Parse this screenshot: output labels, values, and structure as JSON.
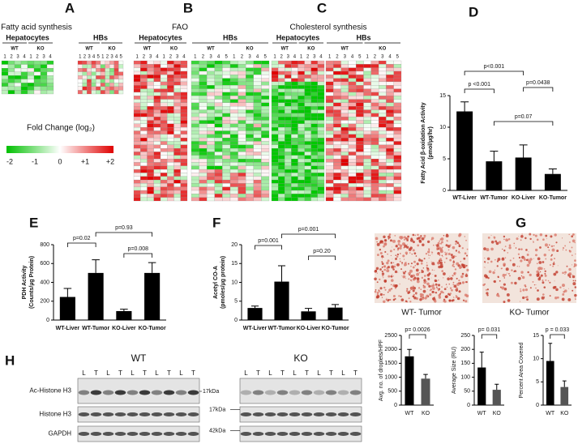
{
  "figure": {
    "heatmaps": [
      {
        "letter": "A",
        "title": "Fatty acid synthesis",
        "groups": [
          {
            "name": "Hepatocytes",
            "subgroups": [
              {
                "name": "WT",
                "columns": [
                  "1",
                  "2",
                  "3",
                  "4"
                ]
              },
              {
                "name": "KO",
                "columns": [
                  "1",
                  "2",
                  "3",
                  "4"
                ]
              }
            ]
          },
          {
            "name": "HBs",
            "subgroups": [
              {
                "name": "WT",
                "columns": [
                  "1",
                  "2",
                  "3",
                  "4",
                  "5"
                ]
              },
              {
                "name": "KO",
                "columns": [
                  "1",
                  "2",
                  "3",
                  "4",
                  "5"
                ]
              }
            ]
          }
        ]
      },
      {
        "letter": "B",
        "title": "FAO",
        "groups": [
          {
            "name": "Hepatocytes",
            "subgroups": [
              {
                "name": "WT",
                "columns": [
                  "1",
                  "2",
                  "3",
                  "4"
                ]
              },
              {
                "name": "KO",
                "columns": [
                  "1",
                  "2",
                  "3",
                  "4"
                ]
              }
            ]
          },
          {
            "name": "HBs",
            "subgroups": [
              {
                "name": "WT",
                "columns": [
                  "1",
                  "2",
                  "3",
                  "4",
                  "5"
                ]
              },
              {
                "name": "KO",
                "columns": [
                  "1",
                  "2",
                  "3",
                  "4",
                  "5"
                ]
              }
            ]
          }
        ]
      },
      {
        "letter": "C",
        "title": "Cholesterol synthesis",
        "groups": [
          {
            "name": "Hepatocytes",
            "subgroups": [
              {
                "name": "WT",
                "columns": [
                  "1",
                  "2",
                  "3",
                  "4"
                ]
              },
              {
                "name": "KO",
                "columns": [
                  "1",
                  "2",
                  "3",
                  "4"
                ]
              }
            ]
          },
          {
            "name": "HBs",
            "subgroups": [
              {
                "name": "WT",
                "columns": [
                  "1",
                  "2",
                  "3",
                  "4",
                  "5"
                ]
              },
              {
                "name": "KO",
                "columns": [
                  "1",
                  "2",
                  "3",
                  "4",
                  "5"
                ]
              }
            ]
          }
        ]
      }
    ],
    "legend": {
      "title": "Fold Change (log₂)",
      "ticks": [
        "-2",
        "-1",
        "0",
        "+1",
        "+2"
      ]
    },
    "images": {
      "letter": "G",
      "captions": [
        "WT- Tumor",
        "KO- Tumor"
      ]
    },
    "blot": {
      "letter": "H",
      "groups": [
        {
          "name": "WT",
          "lanes": [
            "L",
            "T",
            "L",
            "T",
            "L",
            "T",
            "L",
            "T",
            "L",
            "T"
          ]
        },
        {
          "name": "KO",
          "lanes": [
            "L",
            "T",
            "L",
            "T",
            "L",
            "T",
            "L",
            "T",
            "L",
            "T"
          ]
        }
      ],
      "rows": [
        "Ac-Histone H3",
        "Histone H3",
        "GAPDH"
      ],
      "markers": [
        "17kDa",
        "17kDa",
        "42kDa"
      ]
    }
  },
  "chart_data": [
    {
      "type": "bar",
      "letter": "D",
      "ylabel": [
        "Fatty Acid β-oxidation Activity",
        "(pmol/µg/hr)"
      ],
      "categories": [
        "WT-Liver",
        "WT-Tumor",
        "KO-Liver",
        "KO-Tumor"
      ],
      "values": [
        12.5,
        4.6,
        5.2,
        2.6
      ],
      "errors": [
        1.5,
        1.6,
        2.0,
        0.8
      ],
      "color": "#000000",
      "ylim": [
        0,
        15
      ],
      "yticks": [
        0,
        5,
        10,
        15
      ],
      "annotations": [
        {
          "text": "p<0.001",
          "pair": [
            0,
            2
          ]
        },
        {
          "text": "p <0.001",
          "pair": [
            0,
            1
          ]
        },
        {
          "text": "p=0.0438",
          "pair": [
            2,
            3
          ]
        },
        {
          "text": "p=0.07",
          "pair": [
            1,
            3
          ]
        }
      ]
    },
    {
      "type": "bar",
      "letter": "E",
      "ylabel": [
        "PDH Activity",
        "(Counts/µg Protein)"
      ],
      "categories": [
        "WT-Liver",
        "WT-Tumor",
        "KO-Liver",
        "KO-Tumor"
      ],
      "values": [
        245,
        500,
        95,
        500
      ],
      "errors": [
        90,
        140,
        20,
        110
      ],
      "color": "#000000",
      "ylim": [
        0,
        800
      ],
      "yticks": [
        0,
        200,
        400,
        600,
        800
      ],
      "annotations": [
        {
          "text": "p=0.02",
          "pair": [
            0,
            1
          ]
        },
        {
          "text": "p=0.93",
          "pair": [
            1,
            3
          ]
        },
        {
          "text": "p=0.008",
          "pair": [
            2,
            3
          ]
        }
      ]
    },
    {
      "type": "bar",
      "letter": "F",
      "ylabel": [
        "Acetyl CO-A",
        "(pmoles/µg protein)"
      ],
      "categories": [
        "WT-Liver",
        "WT-Tumor",
        "KO-Liver",
        "KO-Tumor"
      ],
      "values": [
        3.2,
        10.2,
        2.3,
        3.3
      ],
      "errors": [
        0.5,
        4.2,
        0.8,
        0.8
      ],
      "color": "#000000",
      "ylim": [
        0,
        20
      ],
      "yticks": [
        0,
        5,
        10,
        15,
        20
      ],
      "annotations": [
        {
          "text": "p=0.001",
          "pair": [
            0,
            1
          ]
        },
        {
          "text": "p=0.001",
          "pair": [
            1,
            3
          ]
        },
        {
          "text": "p=0.20",
          "pair": [
            2,
            3
          ]
        }
      ]
    },
    {
      "type": "bar",
      "ylabel": [
        "Avg. no. of droplets/HPF"
      ],
      "categories": [
        "WT",
        "KO"
      ],
      "values": [
        1750,
        950
      ],
      "errors": [
        250,
        150
      ],
      "colors": [
        "#000000",
        "#555555"
      ],
      "ylim": [
        0,
        2500
      ],
      "yticks": [
        0,
        500,
        1000,
        1500,
        2000,
        2500
      ],
      "annotations": [
        {
          "text": "p= 0.0026",
          "pair": [
            0,
            1
          ]
        }
      ]
    },
    {
      "type": "bar",
      "ylabel": [
        "Average Size (RU)"
      ],
      "categories": [
        "WT",
        "KO"
      ],
      "values": [
        135,
        55
      ],
      "errors": [
        55,
        20
      ],
      "colors": [
        "#000000",
        "#555555"
      ],
      "ylim": [
        0,
        250
      ],
      "yticks": [
        0,
        50,
        100,
        150,
        200,
        250
      ],
      "annotations": [
        {
          "text": "p= 0.031",
          "pair": [
            0,
            1
          ]
        }
      ]
    },
    {
      "type": "bar",
      "ylabel": [
        "Percent Area Covered"
      ],
      "categories": [
        "WT",
        "KO"
      ],
      "values": [
        9.5,
        3.9
      ],
      "errors": [
        3.8,
        1.3
      ],
      "colors": [
        "#000000",
        "#555555"
      ],
      "ylim": [
        0,
        15
      ],
      "yticks": [
        0,
        5,
        10,
        15
      ],
      "annotations": [
        {
          "text": "p = 0.033",
          "pair": [
            0,
            1
          ]
        }
      ]
    }
  ]
}
